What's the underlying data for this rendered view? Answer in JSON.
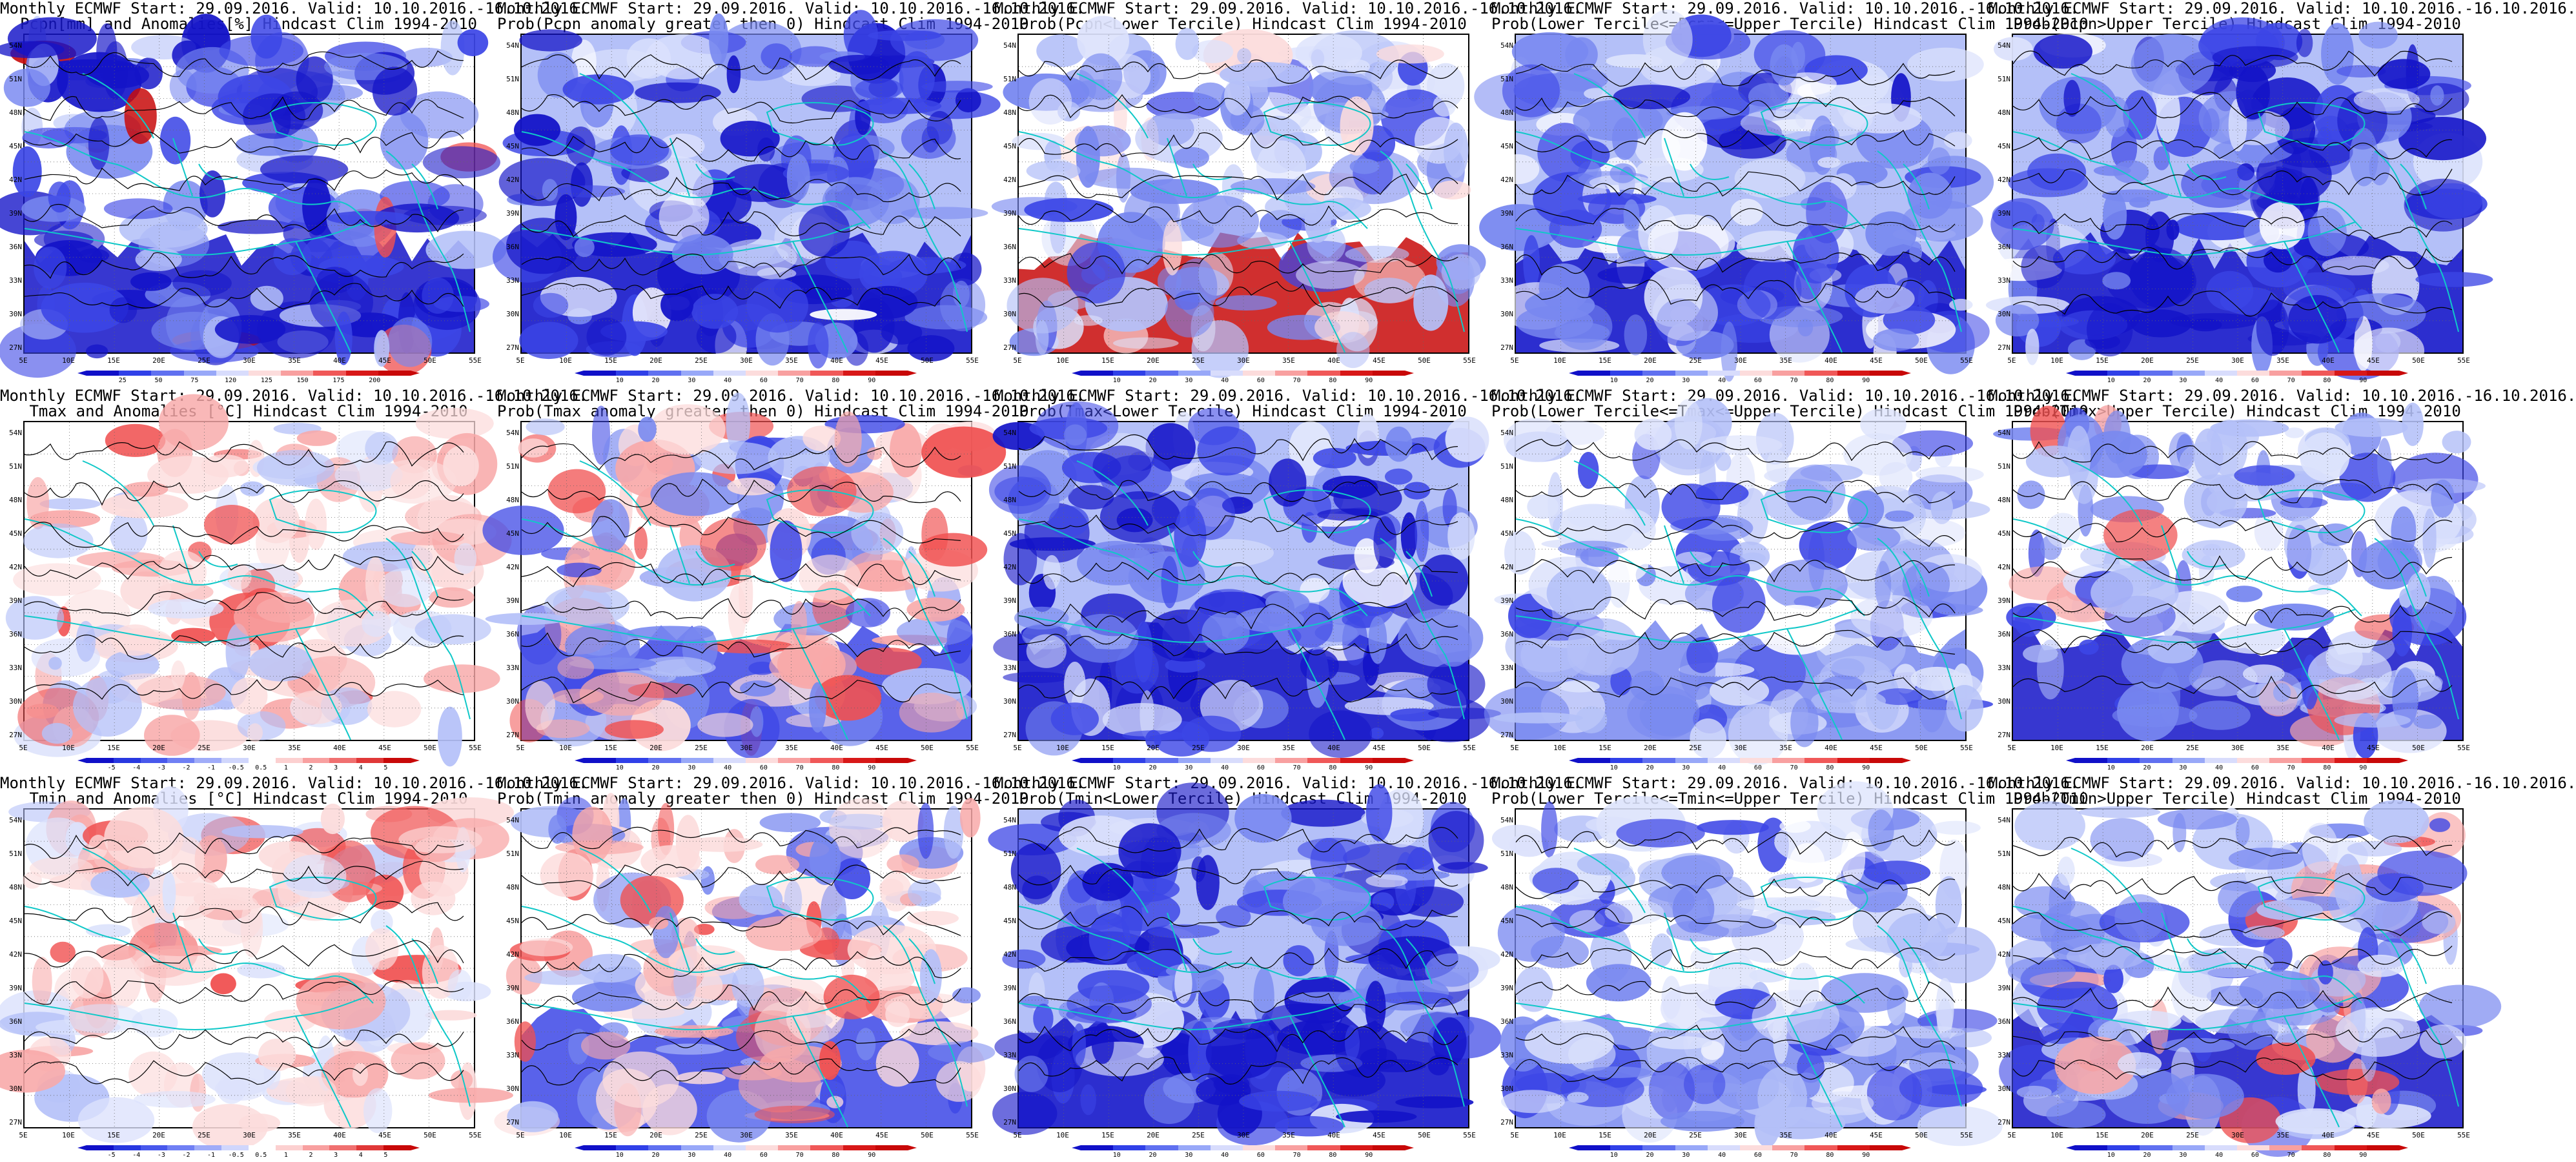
{
  "panels": [
    {
      "id": "p1",
      "title1": "Monthly ECMWF Start: 29.09.2016. Valid: 10.10.2016.-16.10.2016.",
      "title2": "Pcpn[mm] and Anomalies[%] Hindcast Clim 1994-2010",
      "theme": "precip_anom",
      "cbar": [
        "25",
        "50",
        "75",
        "120",
        "125",
        "150",
        "175",
        "200"
      ]
    },
    {
      "id": "p2",
      "title1": "Monthly ECMWF Start: 29.09.2016. Valid: 10.10.2016.-16.10.2016.",
      "title2": "Prob(Pcpn anomaly greater then 0) Hindcast Clim 1994-2010",
      "theme": "blue_dom",
      "cbar": [
        "10",
        "20",
        "30",
        "40",
        "60",
        "70",
        "80",
        "90"
      ]
    },
    {
      "id": "p3",
      "title1": "Monthly ECMWF Start: 29.09.2016. Valid: 10.10.2016.-16.10.2016.",
      "title2": "Prob(Pcpn<Lower Tercile) Hindcast Clim 1994-2010",
      "theme": "red_south",
      "cbar": [
        "10",
        "20",
        "30",
        "40",
        "60",
        "70",
        "80",
        "90"
      ]
    },
    {
      "id": "p4",
      "title1": "Monthly ECMWF Start: 29.09.2016. Valid: 10.10.2016.-16.10.2016.",
      "title2": "Prob(Lower Tercile<=Pcpn<=Upper Tercile) Hindcast Clim 1994-2010",
      "theme": "blue_mid",
      "cbar": [
        "10",
        "20",
        "30",
        "40",
        "60",
        "70",
        "80",
        "90"
      ]
    },
    {
      "id": "p5",
      "title1": "Monthly ECMWF Start: 29.09.2016. Valid: 10.10.2016.-16.10.2016.",
      "title2": "Prob(Pcpn>Upper Tercile) Hindcast Clim 1994-2010",
      "theme": "blue_dom",
      "cbar": [
        "10",
        "20",
        "30",
        "40",
        "60",
        "70",
        "80",
        "90"
      ]
    },
    {
      "id": "p6",
      "title1": "Monthly ECMWF Start: 29.09.2016. Valid: 10.10.2016.-16.10.2016.",
      "title2": "Tmax and Anomalies [°C] Hindcast Clim 1994-2010",
      "theme": "temp_anom",
      "cbar": [
        "-5",
        "-4",
        "-3",
        "-2",
        "-1",
        "-0.5",
        "0.5",
        "1",
        "2",
        "3",
        "4",
        "5"
      ]
    },
    {
      "id": "p7",
      "title1": "Monthly ECMWF Start: 29.09.2016. Valid: 10.10.2016.-16.10.2016.",
      "title2": "Prob(Tmax anomaly greater then 0) Hindcast Clim 1994-2010",
      "theme": "red_west",
      "cbar": [
        "10",
        "20",
        "30",
        "40",
        "60",
        "70",
        "80",
        "90"
      ]
    },
    {
      "id": "p8",
      "title1": "Monthly ECMWF Start: 29.09.2016. Valid: 10.10.2016.-16.10.2016.",
      "title2": "Prob(Tmax<Lower Tercile) Hindcast Clim 1994-2010",
      "theme": "blue_dom",
      "cbar": [
        "10",
        "20",
        "30",
        "40",
        "60",
        "70",
        "80",
        "90"
      ]
    },
    {
      "id": "p9",
      "title1": "Monthly ECMWF Start: 29.09.2016. Valid: 10.10.2016.-16.10.2016.",
      "title2": "Prob(Lower Tercile<=Tmax<=Upper Tercile) Hindcast Clim 1994-2010",
      "theme": "blue_light",
      "cbar": [
        "10",
        "20",
        "30",
        "40",
        "60",
        "70",
        "80",
        "90"
      ]
    },
    {
      "id": "p10",
      "title1": "Monthly ECMWF Start: 29.09.2016. Valid: 10.10.2016.-16.10.2016.",
      "title2": "Prob(Tmax>Upper Tercile) Hindcast Clim 1994-2010",
      "theme": "mixed",
      "cbar": [
        "10",
        "20",
        "30",
        "40",
        "60",
        "70",
        "80",
        "90"
      ]
    },
    {
      "id": "p11",
      "title1": "Monthly ECMWF Start: 29.09.2016. Valid: 10.10.2016.-16.10.2016.",
      "title2": "Tmin and Anomalies [°C] Hindcast Clim 1994-2010",
      "theme": "temp_anom",
      "cbar": [
        "-5",
        "-4",
        "-3",
        "-2",
        "-1",
        "-0.5",
        "0.5",
        "1",
        "2",
        "3",
        "4",
        "5"
      ]
    },
    {
      "id": "p12",
      "title1": "Monthly ECMWF Start: 29.09.2016. Valid: 10.10.2016.-16.10.2016.",
      "title2": "Prob(Tmin anomaly greater then 0) Hindcast Clim 1994-2010",
      "theme": "red_west",
      "cbar": [
        "10",
        "20",
        "30",
        "40",
        "60",
        "70",
        "80",
        "90"
      ]
    },
    {
      "id": "p13",
      "title1": "Monthly ECMWF Start: 29.09.2016. Valid: 10.10.2016.-16.10.2016.",
      "title2": "Prob(Tmin<Lower Tercile) Hindcast Clim 1994-2010",
      "theme": "blue_dom",
      "cbar": [
        "10",
        "20",
        "30",
        "40",
        "60",
        "70",
        "80",
        "90"
      ]
    },
    {
      "id": "p14",
      "title1": "Monthly ECMWF Start: 29.09.2016. Valid: 10.10.2016.-16.10.2016.",
      "title2": "Prob(Lower Tercile<=Tmin<=Upper Tercile) Hindcast Clim 1994-2010",
      "theme": "blue_light",
      "cbar": [
        "10",
        "20",
        "30",
        "40",
        "60",
        "70",
        "80",
        "90"
      ]
    },
    {
      "id": "p15",
      "title1": "Monthly ECMWF Start: 29.09.2016. Valid: 10.10.2016.-16.10.2016.",
      "title2": "Prob(Tmin>Upper Tercile) Hindcast Clim 1994-2010",
      "theme": "mixed",
      "cbar": [
        "10",
        "20",
        "30",
        "40",
        "60",
        "70",
        "80",
        "90"
      ]
    }
  ],
  "lat_labels": [
    "54N",
    "51N",
    "48N",
    "45N",
    "42N",
    "39N",
    "36N",
    "33N",
    "30N",
    "27N"
  ],
  "lon_labels": [
    "5E",
    "10E",
    "15E",
    "20E",
    "25E",
    "30E",
    "35E",
    "40E",
    "45E",
    "50E",
    "55E"
  ],
  "colors": {
    "deep_blue": "#1414c8",
    "blue": "#3c46e6",
    "mid_blue": "#7888f0",
    "light_blue": "#b4c0f8",
    "pale_blue": "#dce2fc",
    "white": "#ffffff",
    "pale_red": "#fcdcdc",
    "light_red": "#f8a8a8",
    "red": "#f05050",
    "deep_red": "#c80a0a",
    "coast": "#10c8c8",
    "contour": "#000000"
  }
}
